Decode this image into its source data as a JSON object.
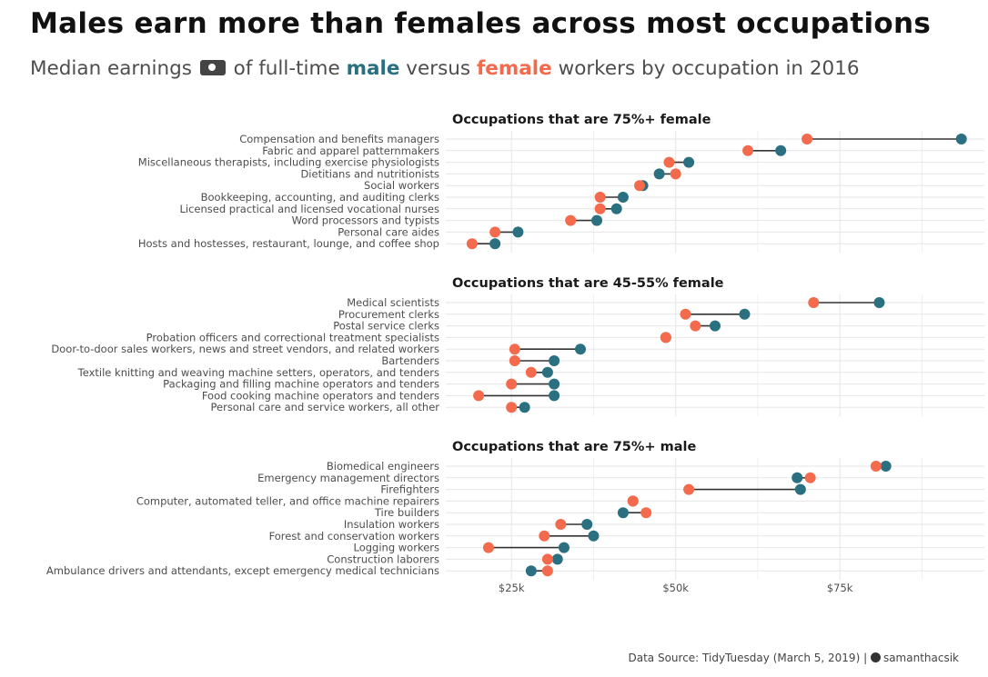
{
  "title": "Males earn more than females across most occupations",
  "subtitle": {
    "before": "Median earnings",
    "icon": "money-icon",
    "middle": "of full-time",
    "male": "male",
    "versus": "versus",
    "female": "female",
    "after": "workers by occupation in 2016"
  },
  "footer": {
    "text": "Data Source: TidyTuesday (March 5, 2019) |",
    "icon": "github-icon",
    "handle": "samanthacsik"
  },
  "colors": {
    "male": "#2a7080",
    "female": "#f36b4c",
    "line": "#333333",
    "grid": "#e6e6e6"
  },
  "chart_data": {
    "type": "dumbbell",
    "x_axis": {
      "ticks": [
        25000,
        50000,
        75000
      ],
      "tick_labels": [
        "$25k",
        "$50k",
        "$75k"
      ],
      "xlim": [
        15000,
        97000
      ]
    },
    "grid": true,
    "series": [
      {
        "name": "male"
      },
      {
        "name": "female"
      }
    ],
    "facets": [
      {
        "title": "Occupations that are 75%+ female",
        "rows": [
          {
            "label": "Compensation and benefits managers",
            "male": 93500,
            "female": 70000
          },
          {
            "label": "Fabric and apparel patternmakers",
            "male": 66000,
            "female": 61000
          },
          {
            "label": "Miscellaneous therapists, including exercise physiologists",
            "male": 52000,
            "female": 49000
          },
          {
            "label": "Dietitians and nutritionists",
            "male": 47500,
            "female": 50000
          },
          {
            "label": "Social workers",
            "male": 45000,
            "female": 44500
          },
          {
            "label": "Bookkeeping, accounting, and auditing clerks",
            "male": 42000,
            "female": 38500
          },
          {
            "label": "Licensed practical and licensed vocational nurses",
            "male": 41000,
            "female": 38500
          },
          {
            "label": "Word processors and typists",
            "male": 38000,
            "female": 34000
          },
          {
            "label": "Personal care aides",
            "male": 26000,
            "female": 22500
          },
          {
            "label": "Hosts and hostesses, restaurant, lounge, and coffee shop",
            "male": 22500,
            "female": 19000
          }
        ]
      },
      {
        "title": "Occupations that are 45-55% female",
        "rows": [
          {
            "label": "Medical scientists",
            "male": 81000,
            "female": 71000
          },
          {
            "label": "Procurement clerks",
            "male": 60500,
            "female": 51500
          },
          {
            "label": "Postal service clerks",
            "male": 56000,
            "female": 53000
          },
          {
            "label": "Probation officers and correctional treatment specialists",
            "male": 48500,
            "female": 48500
          },
          {
            "label": "Door-to-door sales workers, news and street vendors, and related workers",
            "male": 35500,
            "female": 25500
          },
          {
            "label": "Bartenders",
            "male": 31500,
            "female": 25500
          },
          {
            "label": "Textile knitting and weaving machine setters, operators, and tenders",
            "male": 30500,
            "female": 28000
          },
          {
            "label": "Packaging and filling machine operators and tenders",
            "male": 31500,
            "female": 25000
          },
          {
            "label": "Food cooking machine operators and tenders",
            "male": 31500,
            "female": 20000
          },
          {
            "label": "Personal care and service workers, all other",
            "male": 27000,
            "female": 25000
          }
        ]
      },
      {
        "title": "Occupations that are 75%+ male",
        "rows": [
          {
            "label": "Biomedical engineers",
            "male": 82000,
            "female": 80500
          },
          {
            "label": "Emergency management directors",
            "male": 68500,
            "female": 70500
          },
          {
            "label": "Firefighters",
            "male": 69000,
            "female": 52000
          },
          {
            "label": "Computer, automated teller, and office machine repairers",
            "male": 43500,
            "female": 43500
          },
          {
            "label": "Tire builders",
            "male": 42000,
            "female": 45500
          },
          {
            "label": "Insulation workers",
            "male": 36500,
            "female": 32500
          },
          {
            "label": "Forest and conservation workers",
            "male": 37500,
            "female": 30000
          },
          {
            "label": "Logging workers",
            "male": 33000,
            "female": 21500
          },
          {
            "label": "Construction laborers",
            "male": 32000,
            "female": 30500
          },
          {
            "label": "Ambulance drivers and attendants, except emergency medical technicians",
            "male": 28000,
            "female": 30500
          }
        ]
      }
    ]
  }
}
